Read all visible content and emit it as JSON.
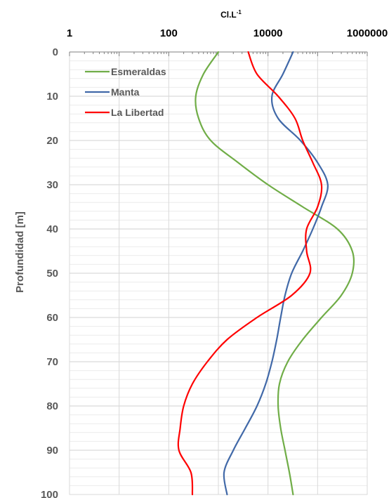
{
  "chart_data": {
    "type": "line",
    "title": "",
    "xlabel": {
      "base": "Cl.L",
      "sup": "-1"
    },
    "ylabel": "Profundidad [m]",
    "x_scale": "log",
    "x_axis_position": "top",
    "y_inverted": true,
    "xlim": [
      1,
      1000000
    ],
    "ylim": [
      0,
      100
    ],
    "x_tick_labels": [
      "1",
      "100",
      "10000",
      "1000000"
    ],
    "x_tick_values": [
      1,
      100,
      10000,
      1000000
    ],
    "y_ticks": [
      0,
      10,
      20,
      30,
      40,
      50,
      60,
      70,
      80,
      90,
      100
    ],
    "grid": true,
    "legend_position": "top-left",
    "series": [
      {
        "name": "Esmeraldas",
        "color": "#70ad47",
        "points": [
          [
            1000,
            0
          ],
          [
            500,
            5
          ],
          [
            350,
            10
          ],
          [
            400,
            15
          ],
          [
            700,
            20
          ],
          [
            2500,
            25
          ],
          [
            10000,
            30
          ],
          [
            50000,
            35
          ],
          [
            250000,
            40
          ],
          [
            500000,
            45
          ],
          [
            500000,
            50
          ],
          [
            300000,
            55
          ],
          [
            120000,
            60
          ],
          [
            50000,
            65
          ],
          [
            25000,
            70
          ],
          [
            17000,
            75
          ],
          [
            16000,
            80
          ],
          [
            18000,
            85
          ],
          [
            22000,
            90
          ],
          [
            27000,
            95
          ],
          [
            32000,
            100
          ]
        ]
      },
      {
        "name": "Manta",
        "color": "#4169a8",
        "points": [
          [
            32000,
            0
          ],
          [
            20000,
            5
          ],
          [
            12000,
            10
          ],
          [
            16000,
            15
          ],
          [
            45000,
            20
          ],
          [
            100000,
            25
          ],
          [
            160000,
            30
          ],
          [
            120000,
            35
          ],
          [
            80000,
            40
          ],
          [
            50000,
            45
          ],
          [
            30000,
            50
          ],
          [
            22000,
            55
          ],
          [
            18000,
            60
          ],
          [
            15000,
            65
          ],
          [
            12000,
            70
          ],
          [
            9000,
            75
          ],
          [
            6000,
            80
          ],
          [
            3500,
            85
          ],
          [
            2000,
            90
          ],
          [
            1300,
            95
          ],
          [
            1500,
            100
          ]
        ]
      },
      {
        "name": "La Libertad",
        "color": "#ff0000",
        "points": [
          [
            4000,
            0
          ],
          [
            6000,
            5
          ],
          [
            16000,
            10
          ],
          [
            35000,
            15
          ],
          [
            50000,
            20
          ],
          [
            80000,
            25
          ],
          [
            120000,
            30
          ],
          [
            100000,
            35
          ],
          [
            60000,
            40
          ],
          [
            60000,
            45
          ],
          [
            70000,
            50
          ],
          [
            30000,
            55
          ],
          [
            6000,
            60
          ],
          [
            1500,
            65
          ],
          [
            600,
            70
          ],
          [
            300,
            75
          ],
          [
            200,
            80
          ],
          [
            170,
            85
          ],
          [
            160,
            90
          ],
          [
            280,
            95
          ],
          [
            300,
            100
          ]
        ]
      }
    ]
  }
}
